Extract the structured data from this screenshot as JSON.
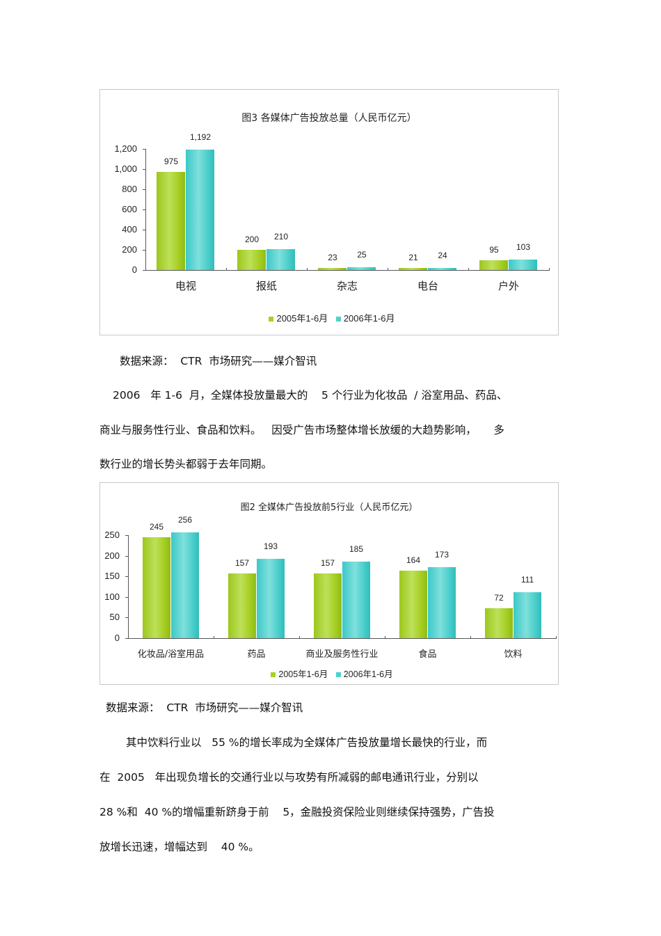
{
  "chart_data": [
    {
      "type": "bar",
      "title": "图3 各媒体广告投放总量（人民币亿元）",
      "categories": [
        "电视",
        "报纸",
        "杂志",
        "电台",
        "户外"
      ],
      "series": [
        {
          "name": "2005年1-6月",
          "values": [
            975,
            200,
            23,
            21,
            95
          ],
          "color": "#a8d025"
        },
        {
          "name": "2006年1-6月",
          "values": [
            1192,
            210,
            25,
            24,
            103
          ],
          "color": "#4fd0cc"
        }
      ],
      "value_labels": [
        [
          "975",
          "200",
          "23",
          "21",
          "95"
        ],
        [
          "1,192",
          "210",
          "25",
          "24",
          "103"
        ]
      ],
      "yticks": [
        "0",
        "200",
        "400",
        "600",
        "800",
        "1,000",
        "1,200"
      ],
      "ylim": [
        0,
        1200
      ],
      "xlabel": "",
      "ylabel": "",
      "grid": false,
      "legend_position": "bottom"
    },
    {
      "type": "bar",
      "title": "图2 全媒体广告投放前5行业（人民币亿元）",
      "categories": [
        "化妆品/浴室用品",
        "药品",
        "商业及服务性行业",
        "食品",
        "饮料"
      ],
      "series": [
        {
          "name": "2005年1-6月",
          "values": [
            245,
            157,
            157,
            164,
            72
          ],
          "color": "#a8d025"
        },
        {
          "name": "2006年1-6月",
          "values": [
            256,
            193,
            185,
            173,
            111
          ],
          "color": "#4fd0cc"
        }
      ],
      "value_labels": [
        [
          "245",
          "157",
          "157",
          "164",
          "72"
        ],
        [
          "256",
          "193",
          "185",
          "173",
          "111"
        ]
      ],
      "yticks": [
        "0",
        "50",
        "100",
        "150",
        "200",
        "250"
      ],
      "ylim": [
        0,
        250
      ],
      "xlabel": "",
      "ylabel": "",
      "grid": false,
      "legend_position": "bottom"
    }
  ],
  "document": {
    "source_1": "数据来源：  CTR  市场研究——媒介智讯",
    "para_1": [
      "2006   年 1-6  月，全媒体投放量最大的    5 个行业为化妆品  / 浴室用品、药品、",
      "商业与服务性行业、食品和饮料。   因受广告市场整体增长放缓的大趋势影响，     多",
      "数行业的增长势头都弱于去年同期。"
    ],
    "source_2": "数据来源：  CTR  市场研究——媒介智讯",
    "para_2": [
      "其中饮料行业以   55 %的增长率成为全媒体广告投放量增长最快的行业，而",
      "在  2005   年出现负增长的交通行业以与攻势有所减弱的邮电通讯行业，分别以",
      "28 %和  40 %的增幅重新跻身于前    5，金融投资保险业则继续保持强势，广告投",
      "放增长迅速，增幅达到    40 %。"
    ]
  }
}
